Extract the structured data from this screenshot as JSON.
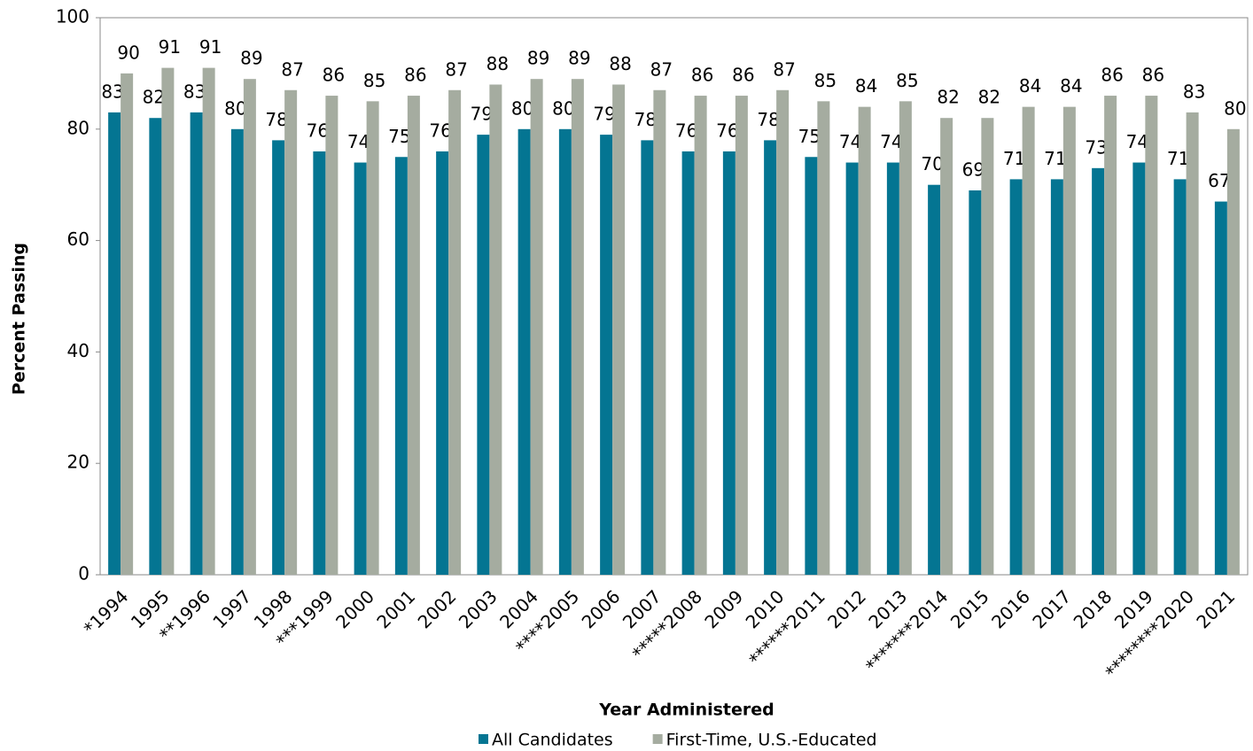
{
  "chart_data": {
    "type": "bar",
    "x_label": "Year Administered",
    "y_label": "Percent Passing",
    "categories": [
      "*1994",
      "1995",
      "**1996",
      "1997",
      "1998",
      "***1999",
      "2000",
      "2001",
      "2002",
      "2003",
      "2004",
      "****2005",
      "2006",
      "2007",
      "*****2008",
      "2009",
      "2010",
      "******2011",
      "2012",
      "2013",
      "*******2014",
      "2015",
      "2016",
      "2017",
      "2018",
      "2019",
      "********2020",
      "2021"
    ],
    "series": [
      {
        "name": "All Candidates",
        "color": "#047592",
        "values": [
          83,
          82,
          83,
          80,
          78,
          76,
          74,
          75,
          76,
          79,
          80,
          80,
          79,
          78,
          76,
          76,
          78,
          75,
          74,
          74,
          70,
          69,
          71,
          71,
          73,
          74,
          71,
          67
        ]
      },
      {
        "name": "First-Time, U.S.-Educated",
        "color": "#a5aca0",
        "values": [
          90,
          91,
          91,
          89,
          87,
          86,
          85,
          86,
          87,
          88,
          89,
          89,
          88,
          87,
          86,
          86,
          87,
          85,
          84,
          85,
          82,
          82,
          84,
          84,
          86,
          86,
          83,
          80
        ]
      }
    ],
    "ylim": [
      0,
      100
    ],
    "yticks": [
      0,
      20,
      40,
      60,
      80,
      100
    ],
    "grid": false,
    "legend": "bottom"
  }
}
